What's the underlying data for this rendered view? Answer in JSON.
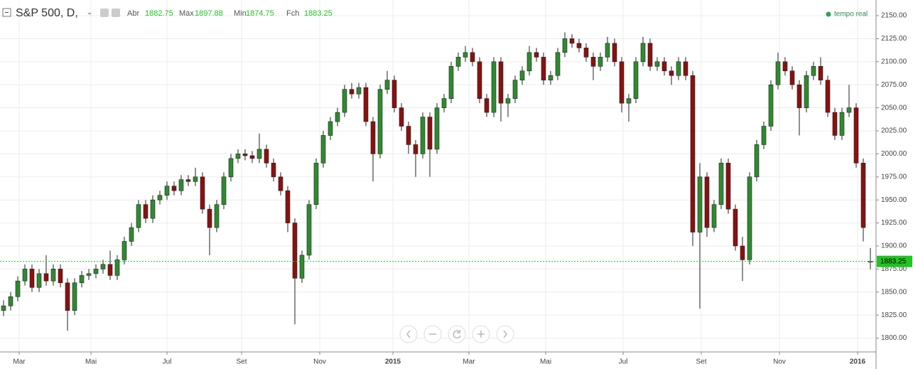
{
  "chart_data": {
    "type": "candlestick",
    "title": "S&P 500, D,",
    "open_label": "Abr",
    "high_label": "Max",
    "low_label": "Min",
    "close_label": "Fch",
    "status": "tempo real",
    "up_color": "#2e8b2e",
    "down_color": "#8b1010",
    "last_price_color": "#21c421",
    "grid": true,
    "ohlc": [
      [
        1830,
        1841,
        1824,
        1835
      ],
      [
        1835,
        1850,
        1830,
        1845
      ],
      [
        1845,
        1867,
        1840,
        1862
      ],
      [
        1862,
        1880,
        1857,
        1875
      ],
      [
        1875,
        1880,
        1850,
        1855
      ],
      [
        1855,
        1875,
        1850,
        1870
      ],
      [
        1870,
        1890,
        1857,
        1862
      ],
      [
        1862,
        1880,
        1857,
        1875
      ],
      [
        1875,
        1880,
        1855,
        1860
      ],
      [
        1860,
        1865,
        1808,
        1830
      ],
      [
        1830,
        1865,
        1825,
        1860
      ],
      [
        1860,
        1873,
        1855,
        1868
      ],
      [
        1868,
        1875,
        1863,
        1870
      ],
      [
        1870,
        1880,
        1865,
        1875
      ],
      [
        1875,
        1885,
        1870,
        1880
      ],
      [
        1880,
        1895,
        1863,
        1868
      ],
      [
        1868,
        1890,
        1863,
        1885
      ],
      [
        1885,
        1910,
        1880,
        1905
      ],
      [
        1905,
        1925,
        1900,
        1920
      ],
      [
        1920,
        1950,
        1915,
        1945
      ],
      [
        1945,
        1950,
        1925,
        1930
      ],
      [
        1930,
        1955,
        1925,
        1950
      ],
      [
        1950,
        1960,
        1945,
        1955
      ],
      [
        1955,
        1970,
        1950,
        1965
      ],
      [
        1965,
        1970,
        1955,
        1960
      ],
      [
        1960,
        1977,
        1955,
        1972
      ],
      [
        1972,
        1977,
        1965,
        1970
      ],
      [
        1970,
        1985,
        1965,
        1975
      ],
      [
        1975,
        1980,
        1935,
        1940
      ],
      [
        1940,
        1945,
        1890,
        1920
      ],
      [
        1920,
        1950,
        1915,
        1945
      ],
      [
        1945,
        1980,
        1940,
        1975
      ],
      [
        1975,
        2000,
        1970,
        1995
      ],
      [
        1995,
        2005,
        1990,
        2000
      ],
      [
        2000,
        2005,
        1993,
        1998
      ],
      [
        1998,
        2003,
        1990,
        1995
      ],
      [
        1995,
        2022,
        1990,
        2005
      ],
      [
        2005,
        2010,
        1985,
        1990
      ],
      [
        1990,
        1995,
        1970,
        1975
      ],
      [
        1975,
        1980,
        1955,
        1960
      ],
      [
        1960,
        1965,
        1915,
        1925
      ],
      [
        1925,
        1930,
        1815,
        1865
      ],
      [
        1865,
        1895,
        1860,
        1890
      ],
      [
        1890,
        1950,
        1885,
        1945
      ],
      [
        1945,
        1995,
        1940,
        1990
      ],
      [
        1990,
        2025,
        1985,
        2020
      ],
      [
        2020,
        2040,
        2015,
        2035
      ],
      [
        2035,
        2050,
        2030,
        2045
      ],
      [
        2045,
        2075,
        2040,
        2070
      ],
      [
        2070,
        2077,
        2060,
        2065
      ],
      [
        2065,
        2077,
        2060,
        2072
      ],
      [
        2072,
        2077,
        2030,
        2035
      ],
      [
        2035,
        2040,
        1970,
        2000
      ],
      [
        2000,
        2075,
        1995,
        2070
      ],
      [
        2070,
        2090,
        2065,
        2080
      ],
      [
        2080,
        2085,
        2045,
        2050
      ],
      [
        2050,
        2055,
        2025,
        2030
      ],
      [
        2030,
        2035,
        2000,
        2010
      ],
      [
        2010,
        2015,
        1975,
        2000
      ],
      [
        2000,
        2045,
        1995,
        2040
      ],
      [
        2040,
        2045,
        1975,
        2005
      ],
      [
        2005,
        2055,
        2000,
        2050
      ],
      [
        2050,
        2065,
        2045,
        2060
      ],
      [
        2060,
        2100,
        2055,
        2095
      ],
      [
        2095,
        2110,
        2090,
        2105
      ],
      [
        2105,
        2117,
        2100,
        2110
      ],
      [
        2110,
        2115,
        2095,
        2100
      ],
      [
        2100,
        2105,
        2055,
        2060
      ],
      [
        2060,
        2065,
        2040,
        2045
      ],
      [
        2045,
        2105,
        2040,
        2100
      ],
      [
        2100,
        2105,
        2035,
        2055
      ],
      [
        2055,
        2065,
        2040,
        2060
      ],
      [
        2060,
        2085,
        2055,
        2080
      ],
      [
        2080,
        2095,
        2075,
        2090
      ],
      [
        2090,
        2117,
        2085,
        2110
      ],
      [
        2110,
        2115,
        2100,
        2105
      ],
      [
        2105,
        2110,
        2075,
        2080
      ],
      [
        2080,
        2090,
        2075,
        2085
      ],
      [
        2085,
        2115,
        2080,
        2110
      ],
      [
        2110,
        2132,
        2105,
        2125
      ],
      [
        2125,
        2130,
        2115,
        2120
      ],
      [
        2120,
        2125,
        2110,
        2115
      ],
      [
        2115,
        2120,
        2100,
        2105
      ],
      [
        2105,
        2110,
        2080,
        2095
      ],
      [
        2095,
        2110,
        2090,
        2105
      ],
      [
        2105,
        2127,
        2100,
        2120
      ],
      [
        2120,
        2125,
        2095,
        2100
      ],
      [
        2100,
        2105,
        2045,
        2055
      ],
      [
        2055,
        2065,
        2035,
        2060
      ],
      [
        2060,
        2105,
        2055,
        2100
      ],
      [
        2100,
        2127,
        2095,
        2120
      ],
      [
        2120,
        2125,
        2090,
        2095
      ],
      [
        2095,
        2105,
        2090,
        2100
      ],
      [
        2100,
        2105,
        2085,
        2090
      ],
      [
        2090,
        2095,
        2075,
        2085
      ],
      [
        2085,
        2105,
        2080,
        2100
      ],
      [
        2100,
        2105,
        2080,
        2085
      ],
      [
        2085,
        2090,
        1900,
        1915
      ],
      [
        1915,
        1990,
        1832,
        1975
      ],
      [
        1975,
        1980,
        1910,
        1920
      ],
      [
        1920,
        1950,
        1915,
        1945
      ],
      [
        1945,
        1995,
        1940,
        1990
      ],
      [
        1990,
        1995,
        1935,
        1940
      ],
      [
        1940,
        1945,
        1895,
        1900
      ],
      [
        1900,
        1910,
        1862,
        1885
      ],
      [
        1885,
        1980,
        1880,
        1975
      ],
      [
        1975,
        2015,
        1970,
        2010
      ],
      [
        2010,
        2035,
        2005,
        2030
      ],
      [
        2030,
        2080,
        2025,
        2075
      ],
      [
        2075,
        2110,
        2070,
        2100
      ],
      [
        2100,
        2105,
        2085,
        2090
      ],
      [
        2090,
        2095,
        2070,
        2075
      ],
      [
        2075,
        2080,
        2020,
        2050
      ],
      [
        2050,
        2090,
        2045,
        2085
      ],
      [
        2085,
        2100,
        2080,
        2095
      ],
      [
        2095,
        2105,
        2075,
        2080
      ],
      [
        2080,
        2085,
        2040,
        2045
      ],
      [
        2045,
        2050,
        2015,
        2020
      ],
      [
        2020,
        2050,
        2015,
        2045
      ],
      [
        2045,
        2075,
        2040,
        2050
      ],
      [
        2050,
        2055,
        1985,
        1990
      ],
      [
        1990,
        1995,
        1905,
        1920
      ],
      [
        1882.75,
        1897.88,
        1874.75,
        1883.25
      ]
    ],
    "xlim": [
      -0.5,
      122.8
    ],
    "xticks": [
      {
        "value": 2.2,
        "label": "Mar"
      },
      {
        "value": 12.3,
        "label": "Mai"
      },
      {
        "value": 23,
        "label": "Jul"
      },
      {
        "value": 33.5,
        "label": "Set"
      },
      {
        "value": 44.5,
        "label": "Nov"
      },
      {
        "value": 54.8,
        "label": "2015"
      },
      {
        "value": 65.5,
        "label": "Mar"
      },
      {
        "value": 76.3,
        "label": "Mai"
      },
      {
        "value": 87.2,
        "label": "Jul"
      },
      {
        "value": 98.2,
        "label": "Set"
      },
      {
        "value": 109.2,
        "label": "Nov"
      },
      {
        "value": 120.2,
        "label": "2016"
      }
    ],
    "ylim": [
      1785,
      2167
    ],
    "yticks": [
      {
        "value": 1800,
        "label": "1800.00"
      },
      {
        "value": 1825,
        "label": "1825.00"
      },
      {
        "value": 1850,
        "label": "1850.00"
      },
      {
        "value": 1875,
        "label": "1875.00"
      },
      {
        "value": 1900,
        "label": "1900.00"
      },
      {
        "value": 1925,
        "label": "1925.00"
      },
      {
        "value": 1950,
        "label": "1950.00"
      },
      {
        "value": 1975,
        "label": "1975.00"
      },
      {
        "value": 2000,
        "label": "2000.00"
      },
      {
        "value": 2025,
        "label": "2025.00"
      },
      {
        "value": 2050,
        "label": "2050.00"
      },
      {
        "value": 2075,
        "label": "2075.00"
      },
      {
        "value": 2100,
        "label": "2100.00"
      },
      {
        "value": 2125,
        "label": "2125.00"
      },
      {
        "value": 2150,
        "label": "2150.00"
      }
    ]
  }
}
